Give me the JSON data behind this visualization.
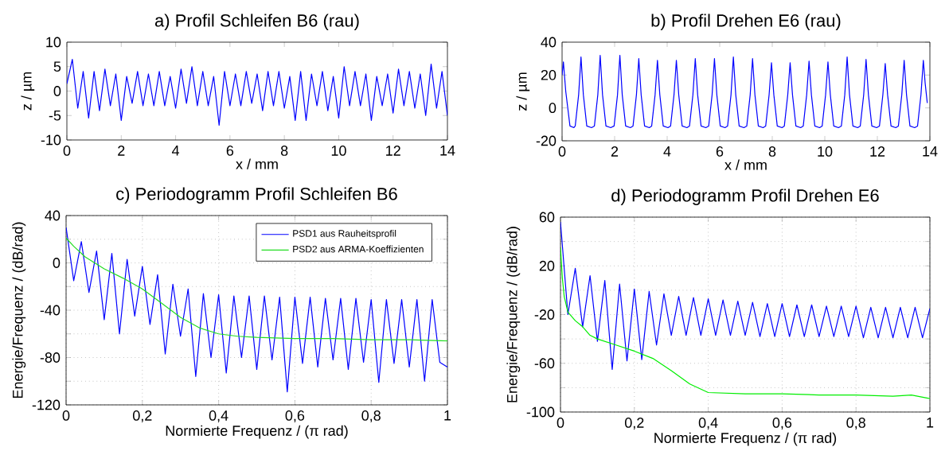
{
  "chart_data": [
    {
      "type": "line",
      "title": "a) Profil Schleifen B6 (rau)",
      "xlabel": "x / mm",
      "ylabel": "z / µm",
      "xlim": [
        0,
        14
      ],
      "ylim": [
        -10,
        10
      ],
      "xticks": [
        0,
        2,
        4,
        6,
        8,
        10,
        12,
        14
      ],
      "yticks": [
        -10,
        -5,
        0,
        5,
        10
      ],
      "grid": false,
      "series": [
        {
          "color": "#0000ff",
          "x": [
            0,
            0.2,
            0.4,
            0.6,
            0.8,
            1,
            1.2,
            1.4,
            1.6,
            1.8,
            2,
            2.2,
            2.4,
            2.6,
            2.8,
            3,
            3.2,
            3.4,
            3.6,
            3.8,
            4,
            4.2,
            4.4,
            4.6,
            4.8,
            5,
            5.2,
            5.4,
            5.6,
            5.8,
            6,
            6.2,
            6.4,
            6.6,
            6.8,
            7,
            7.2,
            7.4,
            7.6,
            7.8,
            8,
            8.2,
            8.4,
            8.6,
            8.8,
            9,
            9.2,
            9.4,
            9.6,
            9.8,
            10,
            10.2,
            10.4,
            10.6,
            10.8,
            11,
            11.2,
            11.4,
            11.6,
            11.8,
            12,
            12.2,
            12.4,
            12.6,
            12.8,
            13,
            13.2,
            13.4,
            13.6,
            13.8,
            14
          ],
          "values": [
            1.5,
            6.5,
            -3.5,
            4,
            -5.5,
            4,
            -4,
            4.5,
            -3,
            3.5,
            -6,
            3,
            -2.5,
            4,
            -3,
            3.5,
            -3,
            4,
            -3,
            3,
            -3.5,
            4.5,
            -2.5,
            5,
            -3,
            4,
            -3,
            3,
            -7,
            4,
            -3,
            3.5,
            -3,
            4,
            -2.5,
            3.5,
            -4,
            4,
            -3,
            4,
            -3.5,
            3,
            -6,
            4,
            -6,
            3.5,
            -3,
            4,
            -4,
            3,
            -5.5,
            5,
            -3,
            4,
            -3,
            3.5,
            -6,
            3,
            -3,
            3.5,
            -4.5,
            4.5,
            -3,
            4,
            -3.5,
            3.5,
            -5,
            5.5,
            -3.5,
            4,
            -5
          ]
        }
      ]
    },
    {
      "type": "line",
      "title": "b) Profil Drehen E6 (rau)",
      "xlabel": "x / mm",
      "ylabel": "z / µm",
      "xlim": [
        0,
        14
      ],
      "ylim": [
        -20,
        40
      ],
      "xticks": [
        0,
        2,
        4,
        6,
        8,
        10,
        12,
        14
      ],
      "yticks": [
        -20,
        0,
        20,
        40
      ],
      "grid": false,
      "series": [
        {
          "color": "#0000ff",
          "x": [
            0,
            0.05,
            0.14,
            0.3,
            0.45,
            0.5,
            0.63,
            0.72,
            0.81,
            0.94,
            1.12,
            1.23,
            1.36,
            1.45,
            1.54,
            1.67,
            1.85,
            1.98,
            2.11,
            2.2,
            2.29,
            2.42,
            2.6,
            2.7,
            2.83,
            2.92,
            3.01,
            3.14,
            3.32,
            3.41,
            3.54,
            3.63,
            3.72,
            3.85,
            4.03,
            4.13,
            4.26,
            4.35,
            4.44,
            4.57,
            4.75,
            4.85,
            4.98,
            5.07,
            5.16,
            5.29,
            5.47,
            5.58,
            5.71,
            5.8,
            5.89,
            6.02,
            6.2,
            6.3,
            6.43,
            6.52,
            6.61,
            6.74,
            6.92,
            7.03,
            7.16,
            7.25,
            7.34,
            7.47,
            7.65,
            7.75,
            7.88,
            7.97,
            8.06,
            8.19,
            8.37,
            8.46,
            8.59,
            8.68,
            8.77,
            8.9,
            9.08,
            9.18,
            9.31,
            9.4,
            9.49,
            9.62,
            9.8,
            9.9,
            10.03,
            10.12,
            10.21,
            10.34,
            10.52,
            10.63,
            10.76,
            10.85,
            10.94,
            11.07,
            11.25,
            11.35,
            11.48,
            11.57,
            11.66,
            11.79,
            11.97,
            12.08,
            12.21,
            12.3,
            12.39,
            12.52,
            12.7,
            12.8,
            12.93,
            13.02,
            13.11,
            13.24,
            13.42,
            13.53,
            13.66,
            13.75,
            13.82,
            13.9
          ],
          "values": [
            20,
            28,
            10,
            -11,
            -12,
            -11,
            8,
            31,
            8,
            -11,
            -12,
            -11,
            8,
            32,
            8,
            -11,
            -12,
            -11,
            8,
            32,
            8,
            -11,
            -12,
            -11,
            8,
            30,
            8,
            -11,
            -12,
            -11,
            8,
            29,
            8,
            -11,
            -12,
            -11,
            8,
            29,
            8,
            -11,
            -12,
            -11,
            8,
            30,
            8,
            -11,
            -12,
            -11,
            8,
            30,
            8,
            -11,
            -12,
            -11,
            8,
            31,
            8,
            -11,
            -12,
            -11,
            8,
            30,
            8,
            -11,
            -12,
            -11,
            8,
            27.5,
            8,
            -11,
            -12,
            -11,
            8,
            27.5,
            8,
            -11,
            -12,
            -11,
            8,
            28.5,
            8,
            -11,
            -12,
            -11,
            8,
            28,
            8,
            -11,
            -12,
            -11,
            8,
            31,
            8,
            -11,
            -12,
            -11,
            8,
            29.5,
            8,
            -11,
            -12,
            -11,
            8,
            27,
            8,
            -11,
            -12,
            -11,
            8,
            29,
            8,
            -11,
            -12,
            -11,
            8,
            29,
            15,
            3
          ]
        }
      ]
    },
    {
      "type": "line",
      "title": "c) Periodogramm Profil Schleifen B6",
      "xlabel": "Normierte Frequenz / (π rad)",
      "ylabel": "Energie/Frequenz / (dB/rad)",
      "xlim": [
        0,
        1
      ],
      "ylim": [
        -120,
        40
      ],
      "xticks": [
        0,
        {
          "value": 0.2,
          "label": "0,2"
        },
        {
          "value": 0.4,
          "label": "0,4"
        },
        {
          "value": 0.6,
          "label": "0,6"
        },
        {
          "value": 0.8,
          "label": "0,8"
        },
        1
      ],
      "yticks": [
        -120,
        {
          "value": -100,
          "label": null
        },
        -80,
        {
          "value": -60,
          "label": null
        },
        -40,
        {
          "value": -20,
          "label": null
        },
        0,
        {
          "value": 20,
          "label": null
        },
        40
      ],
      "grid": true,
      "legend": "top right",
      "series": [
        {
          "name": "PSD1 aus Rauheitsprofil",
          "color": "#0000ff",
          "x": [
            0,
            0.02,
            0.04,
            0.06,
            0.08,
            0.1,
            0.12,
            0.14,
            0.16,
            0.18,
            0.2,
            0.22,
            0.24,
            0.26,
            0.28,
            0.3,
            0.32,
            0.34,
            0.36,
            0.38,
            0.4,
            0.42,
            0.44,
            0.46,
            0.48,
            0.5,
            0.52,
            0.54,
            0.56,
            0.58,
            0.6,
            0.62,
            0.64,
            0.66,
            0.68,
            0.7,
            0.72,
            0.74,
            0.76,
            0.78,
            0.8,
            0.82,
            0.84,
            0.86,
            0.88,
            0.9,
            0.92,
            0.94,
            0.96,
            0.98,
            1
          ],
          "values": [
            30,
            -15,
            18,
            -25,
            10,
            -48,
            8,
            -60,
            3,
            -45,
            -3,
            -52,
            -10,
            -77,
            -18,
            -62,
            -22,
            -96,
            -26,
            -80,
            -27,
            -93,
            -28,
            -80,
            -28,
            -90,
            -28,
            -82,
            -29,
            -109,
            -29,
            -85,
            -29,
            -88,
            -30,
            -82,
            -30,
            -90,
            -30,
            -84,
            -31,
            -101,
            -31,
            -85,
            -31,
            -88,
            -31,
            -100,
            -31,
            -84,
            -88
          ]
        },
        {
          "name": "PSD2 aus ARMA-Koeffizienten",
          "color": "#22dd22",
          "x": [
            0,
            0.02,
            0.05,
            0.1,
            0.15,
            0.2,
            0.25,
            0.3,
            0.35,
            0.4,
            0.45,
            0.5,
            0.6,
            0.7,
            0.8,
            0.9,
            1
          ],
          "values": [
            21,
            14,
            5,
            -5,
            -13,
            -22,
            -34,
            -46,
            -55,
            -60,
            -62,
            -63,
            -64,
            -64,
            -65,
            -65,
            -66
          ]
        }
      ]
    },
    {
      "type": "line",
      "title": "d) Periodogramm Profil Drehen E6",
      "xlabel": "Normierte Frequenz / (π rad)",
      "ylabel": "Energie/Frequenz / (dB/rad)",
      "xlim": [
        0,
        1
      ],
      "ylim": [
        -100,
        60
      ],
      "xticks": [
        0,
        {
          "value": 0.2,
          "label": "0,2"
        },
        {
          "value": 0.4,
          "label": "0,4"
        },
        {
          "value": 0.6,
          "label": "0,6"
        },
        {
          "value": 0.8,
          "label": "0,8"
        },
        1
      ],
      "yticks": [
        -100,
        {
          "value": -80,
          "label": null
        },
        -60,
        {
          "value": -40,
          "label": null
        },
        -20,
        {
          "value": 0,
          "label": null
        },
        20,
        {
          "value": 40,
          "label": null
        },
        60
      ],
      "grid": true,
      "series": [
        {
          "color": "#0000ff",
          "x": [
            0,
            0.02,
            0.04,
            0.06,
            0.08,
            0.1,
            0.12,
            0.14,
            0.16,
            0.18,
            0.2,
            0.22,
            0.24,
            0.26,
            0.28,
            0.3,
            0.32,
            0.34,
            0.36,
            0.38,
            0.4,
            0.42,
            0.44,
            0.46,
            0.48,
            0.5,
            0.52,
            0.54,
            0.56,
            0.58,
            0.6,
            0.62,
            0.64,
            0.66,
            0.68,
            0.7,
            0.72,
            0.74,
            0.76,
            0.78,
            0.8,
            0.82,
            0.84,
            0.86,
            0.88,
            0.9,
            0.92,
            0.94,
            0.96,
            0.98,
            1
          ],
          "values": [
            56,
            -20,
            18,
            -30,
            12,
            -42,
            8,
            -65,
            5,
            -58,
            1,
            -57,
            -1,
            -45,
            -3,
            -37,
            -5,
            -37,
            -6,
            -37,
            -7,
            -37,
            -8,
            -37,
            -9,
            -37,
            -10,
            -38,
            -11,
            -38,
            -11,
            -38,
            -12,
            -38,
            -12,
            -38,
            -13,
            -38,
            -13,
            -38,
            -13,
            -39,
            -14,
            -39,
            -14,
            -39,
            -14,
            -39,
            -14,
            -39,
            -15
          ]
        },
        {
          "color": "#00ee00",
          "x": [
            0,
            0.005,
            0.01,
            0.02,
            0.04,
            0.06,
            0.08,
            0.1,
            0.15,
            0.2,
            0.25,
            0.3,
            0.35,
            0.4,
            0.5,
            0.6,
            0.7,
            0.8,
            0.9,
            0.95,
            1
          ],
          "values": [
            35,
            10,
            -5,
            -18,
            -25,
            -30,
            -37,
            -40,
            -45,
            -50,
            -56,
            -66,
            -77,
            -84,
            -85,
            -85,
            -86,
            -86,
            -87,
            -86,
            -89
          ]
        }
      ]
    }
  ]
}
